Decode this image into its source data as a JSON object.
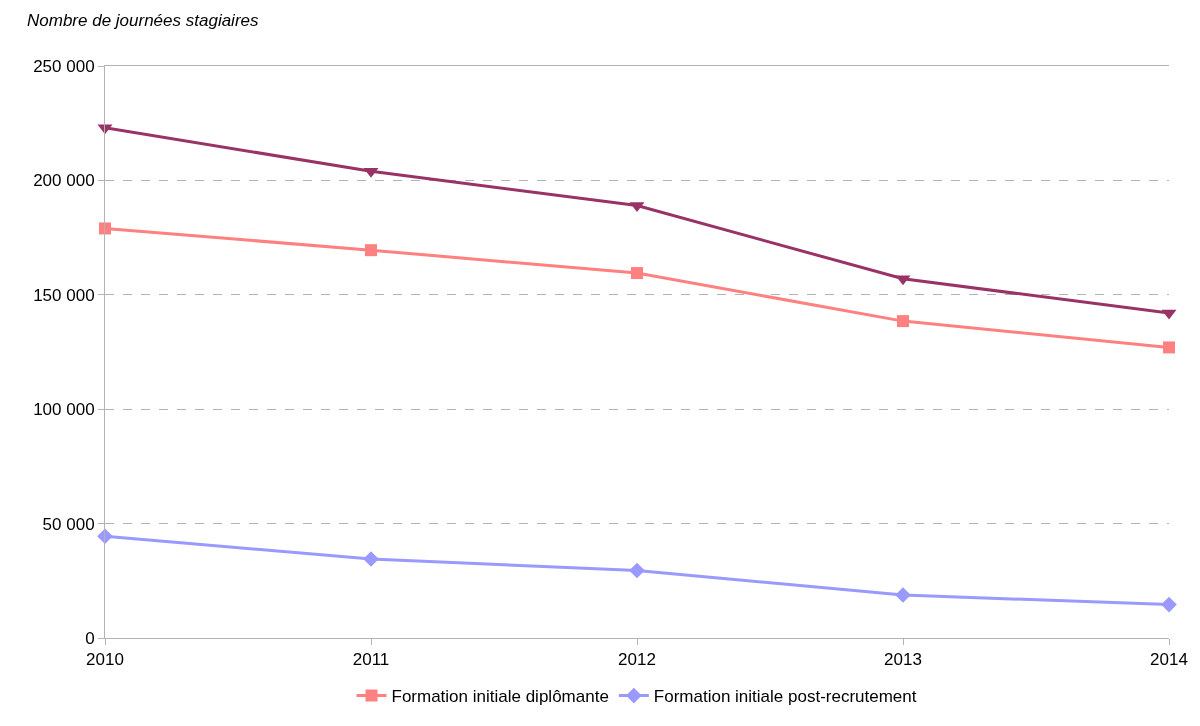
{
  "chart_data": {
    "type": "line",
    "ylabel": "Nombre de journées stagiaires",
    "x": [
      2010,
      2011,
      2012,
      2013,
      2014
    ],
    "xlim": [
      2010,
      2014
    ],
    "xticks": [
      2010,
      2011,
      2012,
      2013,
      2014
    ],
    "ylim": [
      0,
      250000
    ],
    "yticks": [
      {
        "value": 0,
        "label": "0"
      },
      {
        "value": 50000,
        "label": "50 000"
      },
      {
        "value": 100000,
        "label": "100 000"
      },
      {
        "value": 150000,
        "label": "150 000"
      },
      {
        "value": 200000,
        "label": "200 000"
      },
      {
        "value": 250000,
        "label": "250 000"
      }
    ],
    "grid": "y",
    "legend": "bottom",
    "line_style": "solid",
    "series": [
      {
        "color": "#993366",
        "marker": "triangle",
        "values": [
          223000,
          204000,
          189000,
          157000,
          142000
        ]
      },
      {
        "name": "Formation initiale diplômante",
        "color": "#ff8080",
        "marker": "square",
        "values": [
          179000,
          169500,
          159500,
          138500,
          127000
        ]
      },
      {
        "name": "Formation initiale post-recrutement",
        "color": "#9999ff",
        "marker": "diamond",
        "values": [
          44500,
          34500,
          29500,
          18800,
          14600
        ]
      }
    ]
  }
}
